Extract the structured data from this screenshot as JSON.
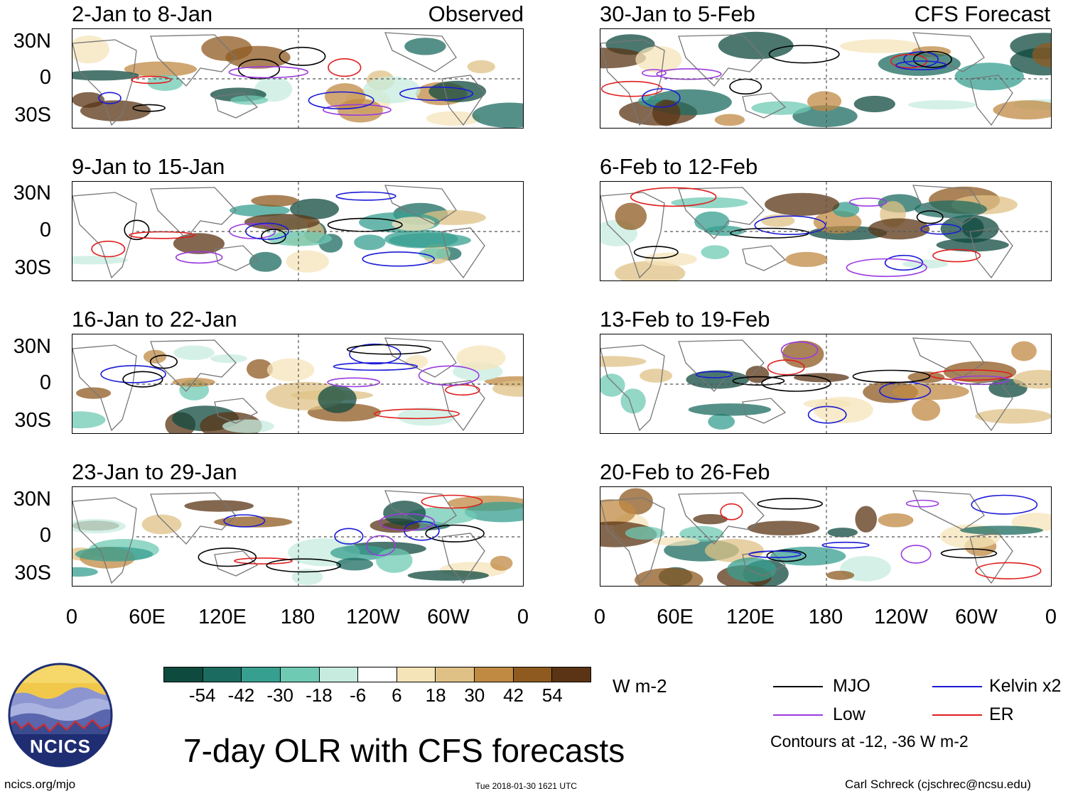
{
  "title": "7-day OLR with CFS forecasts",
  "site": "ncics.org/mjo",
  "timestamp": "Tue 2018-01-30 1621 UTC",
  "author": "Carl Schreck (cjschrec@ncsu.edu)",
  "logo": {
    "text": "NCICS",
    "colors": {
      "sky": "#f2c84b",
      "mountains": "#3c4a8f",
      "ring": "#1f2e73"
    }
  },
  "lat_labels": [
    "30N",
    "0",
    "30S"
  ],
  "lon_labels": [
    "0",
    "60E",
    "120E",
    "180",
    "120W",
    "60W",
    "0"
  ],
  "panels": {
    "left": [
      {
        "period": "2-Jan to 8-Jan",
        "tag": "Observed"
      },
      {
        "period": "9-Jan to 15-Jan",
        "tag": ""
      },
      {
        "period": "16-Jan to 22-Jan",
        "tag": ""
      },
      {
        "period": "23-Jan to 29-Jan",
        "tag": ""
      }
    ],
    "right": [
      {
        "period": "30-Jan to 5-Feb",
        "tag": "CFS Forecast"
      },
      {
        "period": "6-Feb to 12-Feb",
        "tag": ""
      },
      {
        "period": "13-Feb to 19-Feb",
        "tag": ""
      },
      {
        "period": "20-Feb to 26-Feb",
        "tag": ""
      }
    ]
  },
  "colorbar": {
    "units": "W m-2",
    "labels": [
      "-54",
      "-42",
      "-30",
      "-18",
      "-6",
      "6",
      "18",
      "30",
      "42",
      "54"
    ],
    "colors": [
      "#0f4a3f",
      "#1c6b60",
      "#379f90",
      "#6fcab4",
      "#c7ecdf",
      "#ffffff",
      "#f6e4b9",
      "#dfc186",
      "#c08a43",
      "#8f5a20",
      "#5a3414"
    ]
  },
  "legend": {
    "items": [
      {
        "label": "MJO",
        "color": "#000000"
      },
      {
        "label": "Kelvin x2",
        "color": "#1a1ad6"
      },
      {
        "label": "Low",
        "color": "#9b3ae0"
      },
      {
        "label": "ER",
        "color": "#e01f1f"
      }
    ],
    "note": "Contours at -12, -36 W m-2"
  }
}
